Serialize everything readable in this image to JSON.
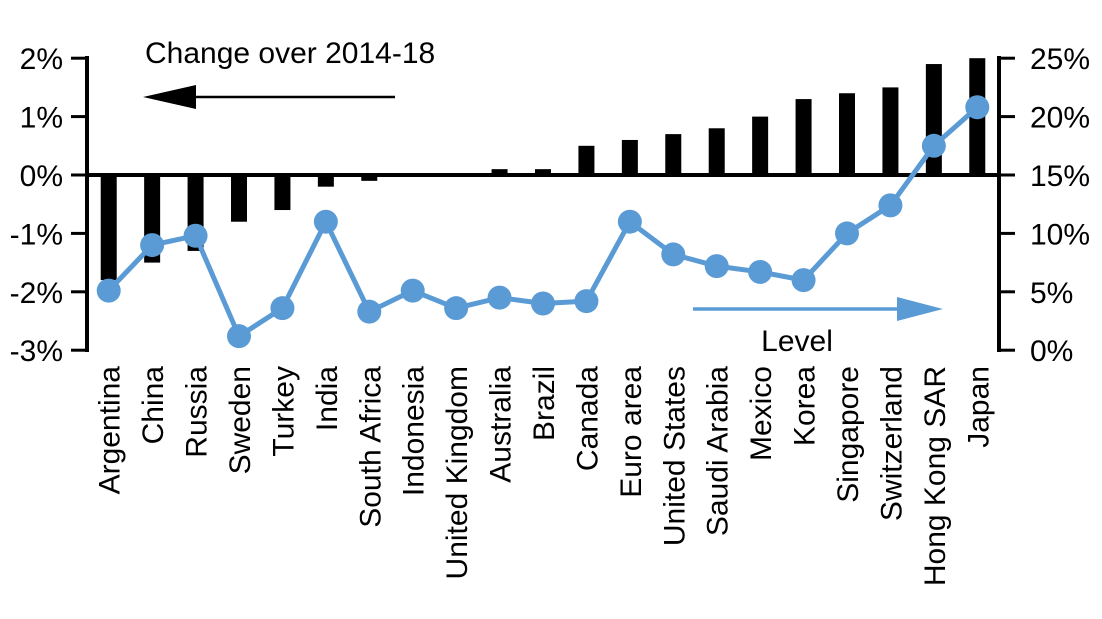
{
  "chart_data": {
    "type": "bar+line",
    "title": "Change over 2014-18",
    "categories": [
      "Argentina",
      "China",
      "Russia",
      "Sweden",
      "Turkey",
      "India",
      "South Africa",
      "Indonesia",
      "United Kingdom",
      "Australia",
      "Brazil",
      "Canada",
      "Euro area",
      "United States",
      "Saudi Arabia",
      "Mexico",
      "Korea",
      "Singapore",
      "Switzerland",
      "Hong Kong SAR",
      "Japan"
    ],
    "series": [
      {
        "name": "Change over 2014-18",
        "type": "bar",
        "axis": "left",
        "color": "#000000",
        "values": [
          -1.8,
          -1.5,
          -1.3,
          -0.8,
          -0.6,
          -0.2,
          -0.1,
          0,
          0,
          0.1,
          0.1,
          0.5,
          0.6,
          0.7,
          0.8,
          1.0,
          1.3,
          1.4,
          1.5,
          1.9,
          2.0
        ]
      },
      {
        "name": "Level",
        "type": "line",
        "axis": "right",
        "color": "#5B9BD5",
        "values": [
          5.1,
          9.0,
          9.8,
          1.2,
          3.6,
          11.0,
          3.3,
          5.1,
          3.6,
          4.5,
          4.0,
          4.2,
          11.0,
          8.2,
          7.2,
          6.7,
          6.0,
          10.0,
          12.4,
          17.5,
          20.8
        ]
      }
    ],
    "left_axis": {
      "tick_labels": [
        "2%",
        "1%",
        "0%",
        "-1%",
        "-2%",
        "-3%"
      ],
      "tick_values": [
        2,
        1,
        0,
        -1,
        -2,
        -3
      ],
      "range": [
        -3,
        2
      ]
    },
    "right_axis": {
      "tick_labels": [
        "25%",
        "20%",
        "15%",
        "10%",
        "5%",
        "0%"
      ],
      "tick_values": [
        25,
        20,
        15,
        10,
        5,
        0
      ],
      "range": [
        0,
        25
      ]
    },
    "legend_position": "annotations-inside-plot",
    "grid": false,
    "background": "#ffffff"
  }
}
